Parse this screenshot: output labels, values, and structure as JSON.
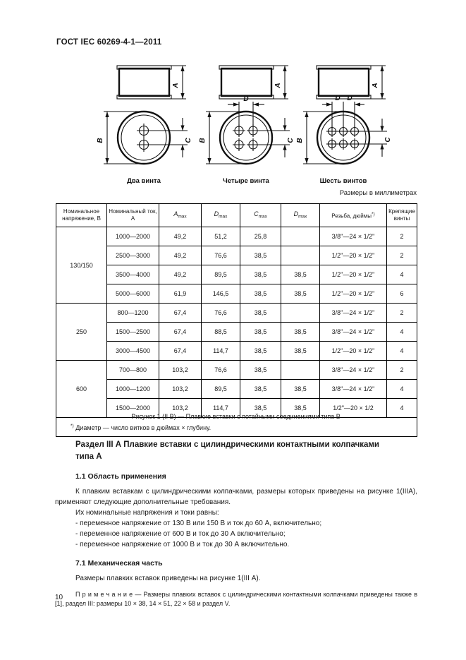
{
  "doc": {
    "header": "ГОСТ IEC 60269-4-1—2011",
    "page_number": "10"
  },
  "figure": {
    "dim_labels": {
      "a": "A",
      "b": "B",
      "c": "C",
      "d": "D"
    },
    "captions": [
      "Два винта",
      "Четыре винта",
      "Шесть винтов"
    ],
    "caption": "Рисунок 1 (II В) — Плавкие вставки с потайными соединениями типа В"
  },
  "table": {
    "units_note": "Размеры в миллиметрах",
    "headers": {
      "voltage": "Номинальное напряжение, В",
      "current": "Номинальный ток, А",
      "dims": [
        {
          "letter": "A",
          "sub": "max"
        },
        {
          "letter": "D",
          "sub": "max"
        },
        {
          "letter": "C",
          "sub": "max"
        },
        {
          "letter": "D",
          "sub": "max"
        }
      ],
      "thread": "Резьба, дюймы",
      "thread_marker": "*)",
      "screws": "Крепящие винты"
    },
    "groups": [
      {
        "voltage": "130/150",
        "rows": [
          [
            "1000—2000",
            "49,2",
            "51,2",
            "25,8",
            "",
            "3/8\"—24 × 1/2\"",
            "2"
          ],
          [
            "2500—3000",
            "49,2",
            "76,6",
            "38,5",
            "",
            "1/2\"—20 × 1/2\"",
            "2"
          ],
          [
            "3500—4000",
            "49,2",
            "89,5",
            "38,5",
            "38,5",
            "1/2\"—20 × 1/2\"",
            "4"
          ],
          [
            "5000—6000",
            "61,9",
            "146,5",
            "38,5",
            "38,5",
            "1/2\"—20 × 1/2\"",
            "6"
          ]
        ]
      },
      {
        "voltage": "250",
        "rows": [
          [
            "800—1200",
            "67,4",
            "76,6",
            "38,5",
            "",
            "3/8\"—24 × 1/2\"",
            "2"
          ],
          [
            "1500—2500",
            "67,4",
            "88,5",
            "38,5",
            "38,5",
            "3/8\"—24 × 1/2\"",
            "4"
          ],
          [
            "3000—4500",
            "67,4",
            "114,7",
            "38,5",
            "38,5",
            "1/2\"—20 × 1/2\"",
            "4"
          ]
        ]
      },
      {
        "voltage": "600",
        "rows": [
          [
            "700—800",
            "103,2",
            "76,6",
            "38,5",
            "",
            "3/8\"—24 × 1/2\"",
            "2"
          ],
          [
            "1000—1200",
            "103,2",
            "89,5",
            "38,5",
            "38,5",
            "3/8\"—24 × 1/2\"",
            "4"
          ],
          [
            "1500—2000",
            "103,2",
            "114,7",
            "38,5",
            "38,5",
            "1/2\"—20 × 1/2",
            "4"
          ]
        ]
      }
    ],
    "footnote_marker": "*)",
    "footnote_text": " Диаметр — число витков в дюймах × глубину."
  },
  "section": {
    "title_lines": [
      "Раздел III А  Плавкие вставки с цилиндрическими контактными колпачками",
      "типа А"
    ],
    "scope_heading": "1.1  Область применения",
    "scope_paragraph": "К плавким вставкам с цилиндрическими колпачками, размеры которых приведены на рисунке 1(IIIА), применяют следующие дополнительные требования.",
    "ratings_intro": "Их номинальные напряжения и токи равны:",
    "ratings_items": [
      "- переменное напряжение от 130 В или 150 В и ток до 60 А, включительно;",
      "- переменное напряжение от 600 В и ток до 30 А включительно;",
      "- переменное напряжение от 1000 В и ток до 30 А включительно."
    ],
    "mech_heading": "7.1  Механическая часть",
    "mech_paragraph": "Размеры плавких вставок приведены на рисунке 1(III А).",
    "note_label": "П р и м е ч а н и е",
    "note_text": " — Размеры плавких вставок с цилиндрическими контактными колпачками приведены также в [1], раздел III: размеры 10 × 38, 14 × 51, 22 × 58 и раздел V."
  }
}
